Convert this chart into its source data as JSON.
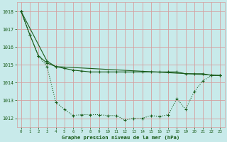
{
  "background_color": "#c8eaea",
  "grid_color": "#d4a0a0",
  "line_color": "#1a5c1a",
  "title": "Graphe pression niveau de la mer (hPa)",
  "xlim": [
    -0.5,
    23.5
  ],
  "ylim": [
    1011.5,
    1018.5
  ],
  "yticks": [
    1012,
    1013,
    1014,
    1015,
    1016,
    1017,
    1018
  ],
  "xticks": [
    0,
    1,
    2,
    3,
    4,
    5,
    6,
    7,
    8,
    9,
    10,
    11,
    12,
    13,
    14,
    15,
    16,
    17,
    18,
    19,
    20,
    21,
    22,
    23
  ],
  "series1_x": [
    0,
    1,
    2,
    3,
    4,
    5,
    6,
    7,
    8,
    9,
    10,
    11,
    12,
    13,
    14,
    15,
    16,
    17,
    18,
    19,
    20,
    21,
    22,
    23
  ],
  "series1_y": [
    1018.0,
    1016.7,
    1015.5,
    1014.9,
    1012.9,
    1012.5,
    1012.15,
    1012.2,
    1012.2,
    1012.2,
    1012.15,
    1012.15,
    1011.9,
    1012.0,
    1012.0,
    1012.15,
    1012.1,
    1012.2,
    1013.1,
    1012.5,
    1013.5,
    1014.1,
    1014.4,
    1014.4
  ],
  "series2_x": [
    0,
    1,
    2,
    3,
    4,
    5,
    6,
    7,
    8,
    9,
    10,
    11,
    12,
    13,
    14,
    15,
    16,
    17,
    18,
    19,
    20,
    21,
    22,
    23
  ],
  "series2_y": [
    1018.0,
    1016.7,
    1015.5,
    1015.1,
    1014.9,
    1014.8,
    1014.7,
    1014.65,
    1014.6,
    1014.6,
    1014.6,
    1014.6,
    1014.6,
    1014.6,
    1014.6,
    1014.6,
    1014.6,
    1014.6,
    1014.6,
    1014.5,
    1014.5,
    1014.5,
    1014.4,
    1014.4
  ],
  "series3_x": [
    0,
    3,
    4,
    23
  ],
  "series3_y": [
    1018.0,
    1015.2,
    1014.9,
    1014.4
  ]
}
